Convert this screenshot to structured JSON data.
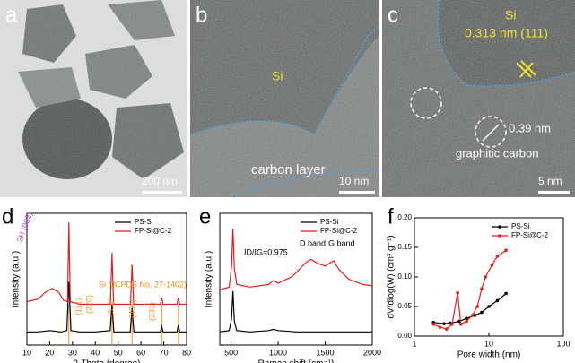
{
  "images": [
    {
      "label": "a",
      "scale_bar": "200 nm"
    },
    {
      "label": "b",
      "scale_bar": "10 nm",
      "annotations": [
        "Si",
        "carbon layer"
      ]
    },
    {
      "label": "c",
      "scale_bar": "5 nm",
      "annotations": [
        "Si",
        "0.313 nm (111)",
        "0.39 nm",
        "graphitic carbon"
      ]
    }
  ],
  "chart_data": [
    {
      "type": "line",
      "panel_label": "d",
      "xlabel": "2-Theta (degree)",
      "ylabel": "Intensity (a.u.)",
      "xlim": [
        10,
        80
      ],
      "xticks": [
        10,
        20,
        30,
        40,
        50,
        60,
        70,
        80
      ],
      "ylim": [
        0,
        100
      ],
      "legend": "upper right",
      "series": [
        {
          "name": "PS-Si",
          "color": "#000000",
          "x": [
            10,
            15,
            20,
            25,
            27.5,
            28.4,
            29.3,
            33,
            40,
            46.5,
            47.3,
            48.1,
            55.3,
            56.1,
            56.9,
            65,
            68.5,
            69.1,
            69.7,
            75.8,
            76.4,
            77,
            80
          ],
          "values": [
            10,
            10,
            11,
            10,
            11,
            48,
            11,
            10,
            10,
            11,
            31,
            10,
            10,
            28,
            10,
            10,
            10,
            14,
            10,
            10,
            15,
            10,
            10
          ]
        },
        {
          "name": "FP-Si@C-2",
          "color": "#e0201b",
          "x": [
            10,
            15,
            18,
            21,
            24,
            26,
            27.8,
            28.4,
            29,
            33,
            40,
            46.6,
            47.3,
            48,
            55.4,
            56.1,
            56.8,
            65,
            68.5,
            69.1,
            69.7,
            75.8,
            76.4,
            77,
            80
          ],
          "values": [
            33,
            35,
            40,
            43,
            40,
            34,
            33,
            93,
            33,
            31,
            31,
            31,
            70,
            31,
            31,
            61,
            31,
            31,
            31,
            36,
            31,
            31,
            36,
            31,
            31
          ]
        }
      ],
      "reference_lines": {
        "color": "#f28c1e",
        "x": [
          28.4,
          47.3,
          56.1,
          69.1,
          76.4
        ]
      },
      "annotations": [
        "2H (002)",
        "Si (JCPDS No. 27-1402)",
        "(111)",
        "(220)",
        "(311)",
        "(400)",
        "(331)"
      ]
    },
    {
      "type": "line",
      "panel_label": "e",
      "xlabel": "Raman shift (cm⁻¹)",
      "ylabel": "Intensity (a.u.)",
      "xlim": [
        380,
        2000
      ],
      "xticks": [
        500,
        1000,
        1500,
        2000
      ],
      "ylim": [
        0,
        100
      ],
      "legend": "upper right",
      "series": [
        {
          "name": "PS-Si",
          "color": "#000000",
          "x": [
            380,
            480,
            505,
            520,
            535,
            560,
            700,
            900,
            950,
            1000,
            1200,
            1400,
            1600,
            1800,
            2000
          ],
          "values": [
            10,
            11,
            20,
            41,
            18,
            11,
            10,
            11,
            12,
            11,
            10,
            10,
            10,
            10,
            10
          ]
        },
        {
          "name": "FP-Si@C-2",
          "color": "#e0201b",
          "x": [
            380,
            480,
            505,
            520,
            535,
            560,
            700,
            900,
            950,
            1000,
            1150,
            1300,
            1350,
            1420,
            1500,
            1590,
            1650,
            1750,
            1900,
            2000
          ],
          "values": [
            42,
            44,
            60,
            88,
            58,
            46,
            44,
            46,
            49,
            47,
            52,
            63,
            65,
            62,
            60,
            64,
            57,
            50,
            46,
            45
          ]
        }
      ],
      "annotations": [
        "ID/IG=0.975",
        "D band",
        "G band"
      ]
    },
    {
      "type": "line",
      "panel_label": "f",
      "xlabel": "Pore width (nm)",
      "ylabel": "dV/dlog(W) (cm³ g⁻¹)",
      "xlim": [
        1,
        100
      ],
      "xticks": [
        1,
        10,
        100
      ],
      "xscale": "log",
      "ylim": [
        0,
        0.2
      ],
      "yticks": [
        {
          "value": 0,
          "label": "0.00"
        },
        {
          "value": 0.05,
          "label": "0.05"
        },
        {
          "value": 0.1,
          "label": "0.10"
        },
        {
          "value": 0.15,
          "label": "0.15"
        },
        {
          "value": 0.2,
          "label": "0.20"
        }
      ],
      "legend": "upper right",
      "markers": true,
      "series": [
        {
          "name": "PS-Si",
          "color": "#000000",
          "x": [
            1.8,
            2.5,
            3,
            4,
            5,
            6.5,
            8,
            10,
            13,
            17
          ],
          "values": [
            0.023,
            0.021,
            0.022,
            0.025,
            0.03,
            0.035,
            0.04,
            0.05,
            0.06,
            0.072
          ]
        },
        {
          "name": "FP-Si@C-2",
          "color": "#e0201b",
          "x": [
            1.8,
            2.2,
            2.7,
            3.2,
            3.8,
            4.2,
            5,
            6,
            7,
            8,
            9,
            11,
            13,
            17
          ],
          "values": [
            0.02,
            0.015,
            0.012,
            0.02,
            0.073,
            0.02,
            0.025,
            0.035,
            0.05,
            0.08,
            0.1,
            0.12,
            0.135,
            0.145
          ]
        }
      ]
    }
  ]
}
